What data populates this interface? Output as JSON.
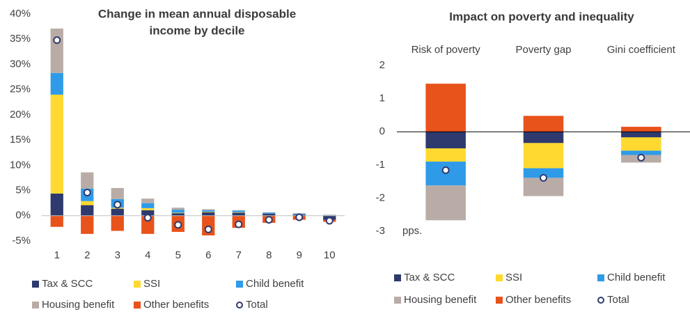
{
  "chart_data": [
    {
      "type": "bar",
      "stacked": true,
      "title": [
        "Change in mean annual disposable",
        "income by decile"
      ],
      "categories": [
        "1",
        "2",
        "3",
        "4",
        "5",
        "6",
        "7",
        "8",
        "9",
        "10"
      ],
      "ylim": [
        -5,
        40
      ],
      "yticks": [
        {
          "value": -5,
          "label": "-5%"
        },
        {
          "value": 0,
          "label": "0%"
        },
        {
          "value": 5,
          "label": "5%"
        },
        {
          "value": 10,
          "label": "10%"
        },
        {
          "value": 15,
          "label": "15%"
        },
        {
          "value": 20,
          "label": "20%"
        },
        {
          "value": 25,
          "label": "25%"
        },
        {
          "value": 30,
          "label": "30%"
        },
        {
          "value": 35,
          "label": "35%"
        },
        {
          "value": 40,
          "label": "40%"
        }
      ],
      "series": [
        {
          "name": "Tax & SCC",
          "color": "#2e3a6e",
          "values": [
            4.4,
            2.1,
            1.4,
            1.1,
            0.5,
            0.7,
            0.6,
            0.4,
            0.2,
            -0.8
          ]
        },
        {
          "name": "SSI",
          "color": "#ffd92f",
          "values": [
            19.6,
            0.8,
            0.2,
            0.4,
            0.1,
            0.1,
            0.1,
            0,
            0,
            0
          ]
        },
        {
          "name": "Child benefit",
          "color": "#2f9be8",
          "values": [
            4.3,
            2.5,
            1.7,
            1.0,
            0.6,
            0.3,
            0.3,
            0.2,
            0.2,
            0.1
          ]
        },
        {
          "name": "Housing benefit",
          "color": "#b9aca7",
          "values": [
            8.8,
            3.2,
            2.2,
            0.9,
            0.4,
            0.2,
            0.1,
            0.1,
            0.1,
            0.1
          ]
        },
        {
          "name": "Other benefits",
          "color": "#e8521b",
          "values": [
            -2.2,
            -3.6,
            -3.0,
            -3.6,
            -3.2,
            -3.9,
            -2.4,
            -1.4,
            -0.8,
            -0.4
          ]
        },
        {
          "name": "Total",
          "type": "scatter",
          "color": "#2e3a6e",
          "values": [
            34.8,
            4.6,
            2.2,
            -0.4,
            -1.8,
            -2.7,
            -1.7,
            -0.8,
            -0.3,
            -1.0
          ]
        }
      ]
    },
    {
      "type": "bar",
      "stacked": true,
      "title": [
        "Impact on poverty and inequality"
      ],
      "categories": [
        "Risk of poverty",
        "Poverty gap",
        "Gini coefficient"
      ],
      "ylim": [
        -3,
        2
      ],
      "yticks": [
        -3,
        -2,
        -1,
        0,
        1,
        2
      ],
      "annotation": "pps.",
      "series": [
        {
          "name": "Tax & SCC",
          "color": "#2e3a6e",
          "values": [
            -0.5,
            -0.34,
            -0.17
          ]
        },
        {
          "name": "SSI",
          "color": "#ffd92f",
          "values": [
            -0.4,
            -0.76,
            -0.4
          ]
        },
        {
          "name": "Child benefit",
          "color": "#2f9be8",
          "values": [
            -0.72,
            -0.29,
            -0.13
          ]
        },
        {
          "name": "Housing benefit",
          "color": "#b9aca7",
          "values": [
            -1.05,
            -0.55,
            -0.23
          ]
        },
        {
          "name": "Other benefits",
          "color": "#e8521b",
          "values": [
            1.45,
            0.48,
            0.15
          ]
        },
        {
          "name": "Total",
          "type": "scatter",
          "color": "#2e3a6e",
          "values": [
            -1.16,
            -1.39,
            -0.78
          ]
        }
      ]
    }
  ]
}
